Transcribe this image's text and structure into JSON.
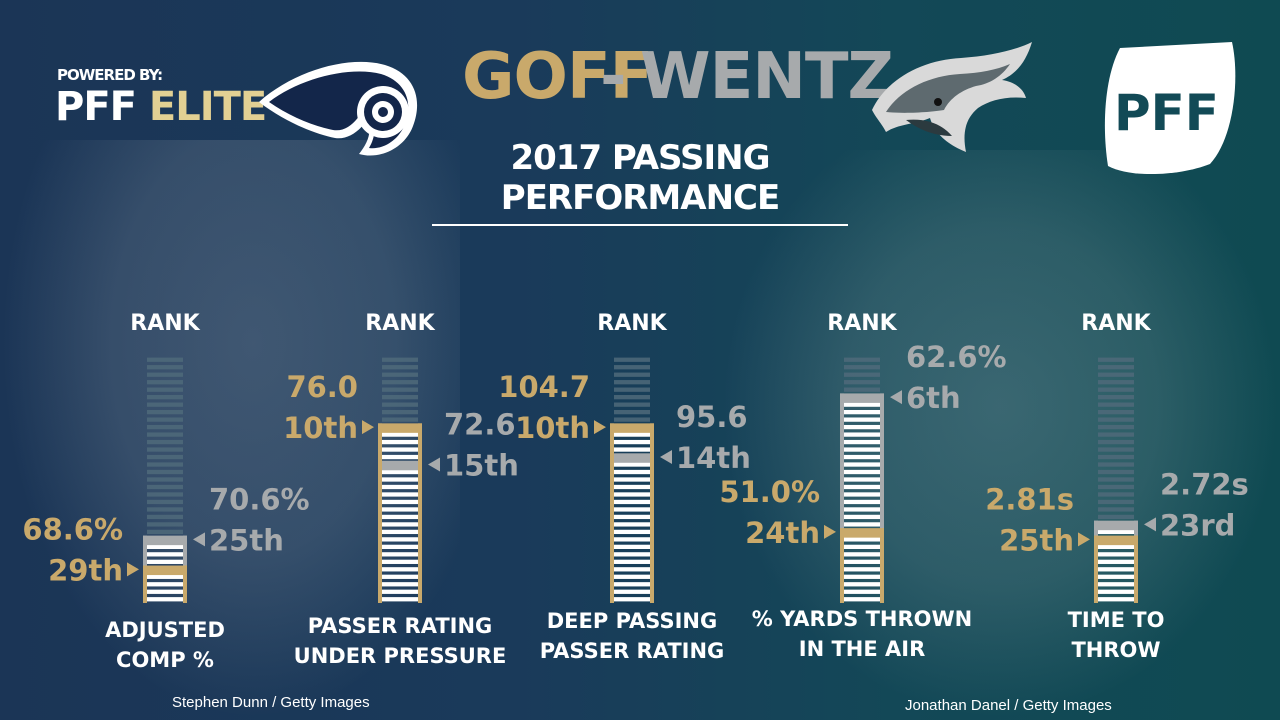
{
  "branding": {
    "powered_by": "POWERED BY:",
    "pff": "PFF",
    "elite": "ELITE",
    "logo_text": "PFF"
  },
  "title": {
    "left_name": "GOFF",
    "dash": "-",
    "right_name": "WENTZ",
    "subtitle": "2017 PASSING PERFORMANCE"
  },
  "credits": {
    "left": "Stephen Dunn / Getty Images",
    "right": "Jonathan Danel / Getty Images"
  },
  "colors": {
    "goff": "#c9a96b",
    "wentz": "#a7aaac",
    "rank_header": "#ffffff"
  },
  "icons": [
    "rams-logo-icon",
    "eagles-logo-icon",
    "pff-logo-icon"
  ],
  "chart_data": {
    "type": "bar",
    "rank_header": "RANK",
    "rank_scale_total": 33,
    "series": [
      {
        "name": "GOFF",
        "color": "#c9a96b"
      },
      {
        "name": "WENTZ",
        "color": "#a7aaac"
      }
    ],
    "metrics": [
      {
        "label": "ADJUSTED COMP %",
        "goff_value": "68.6%",
        "goff_rank": "29th",
        "goff_rank_num": 29,
        "wentz_value": "70.6%",
        "wentz_rank": "25th",
        "wentz_rank_num": 25
      },
      {
        "label": "PASSER RATING UNDER PRESSURE",
        "goff_value": "76.0",
        "goff_rank": "10th",
        "goff_rank_num": 10,
        "wentz_value": "72.6",
        "wentz_rank": "15th",
        "wentz_rank_num": 15
      },
      {
        "label": "DEEP PASSING PASSER RATING",
        "goff_value": "104.7",
        "goff_rank": "10th",
        "goff_rank_num": 10,
        "wentz_value": "95.6",
        "wentz_rank": "14th",
        "wentz_rank_num": 14
      },
      {
        "label": "% YARDS THROWN IN THE AIR",
        "goff_value": "51.0%",
        "goff_rank": "24th",
        "goff_rank_num": 24,
        "wentz_value": "62.6%",
        "wentz_rank": "6th",
        "wentz_rank_num": 6
      },
      {
        "label": "TIME TO THROW",
        "goff_value": "2.81s",
        "goff_rank": "25th",
        "goff_rank_num": 25,
        "wentz_value": "2.72s",
        "wentz_rank": "23rd",
        "wentz_rank_num": 23
      }
    ]
  }
}
